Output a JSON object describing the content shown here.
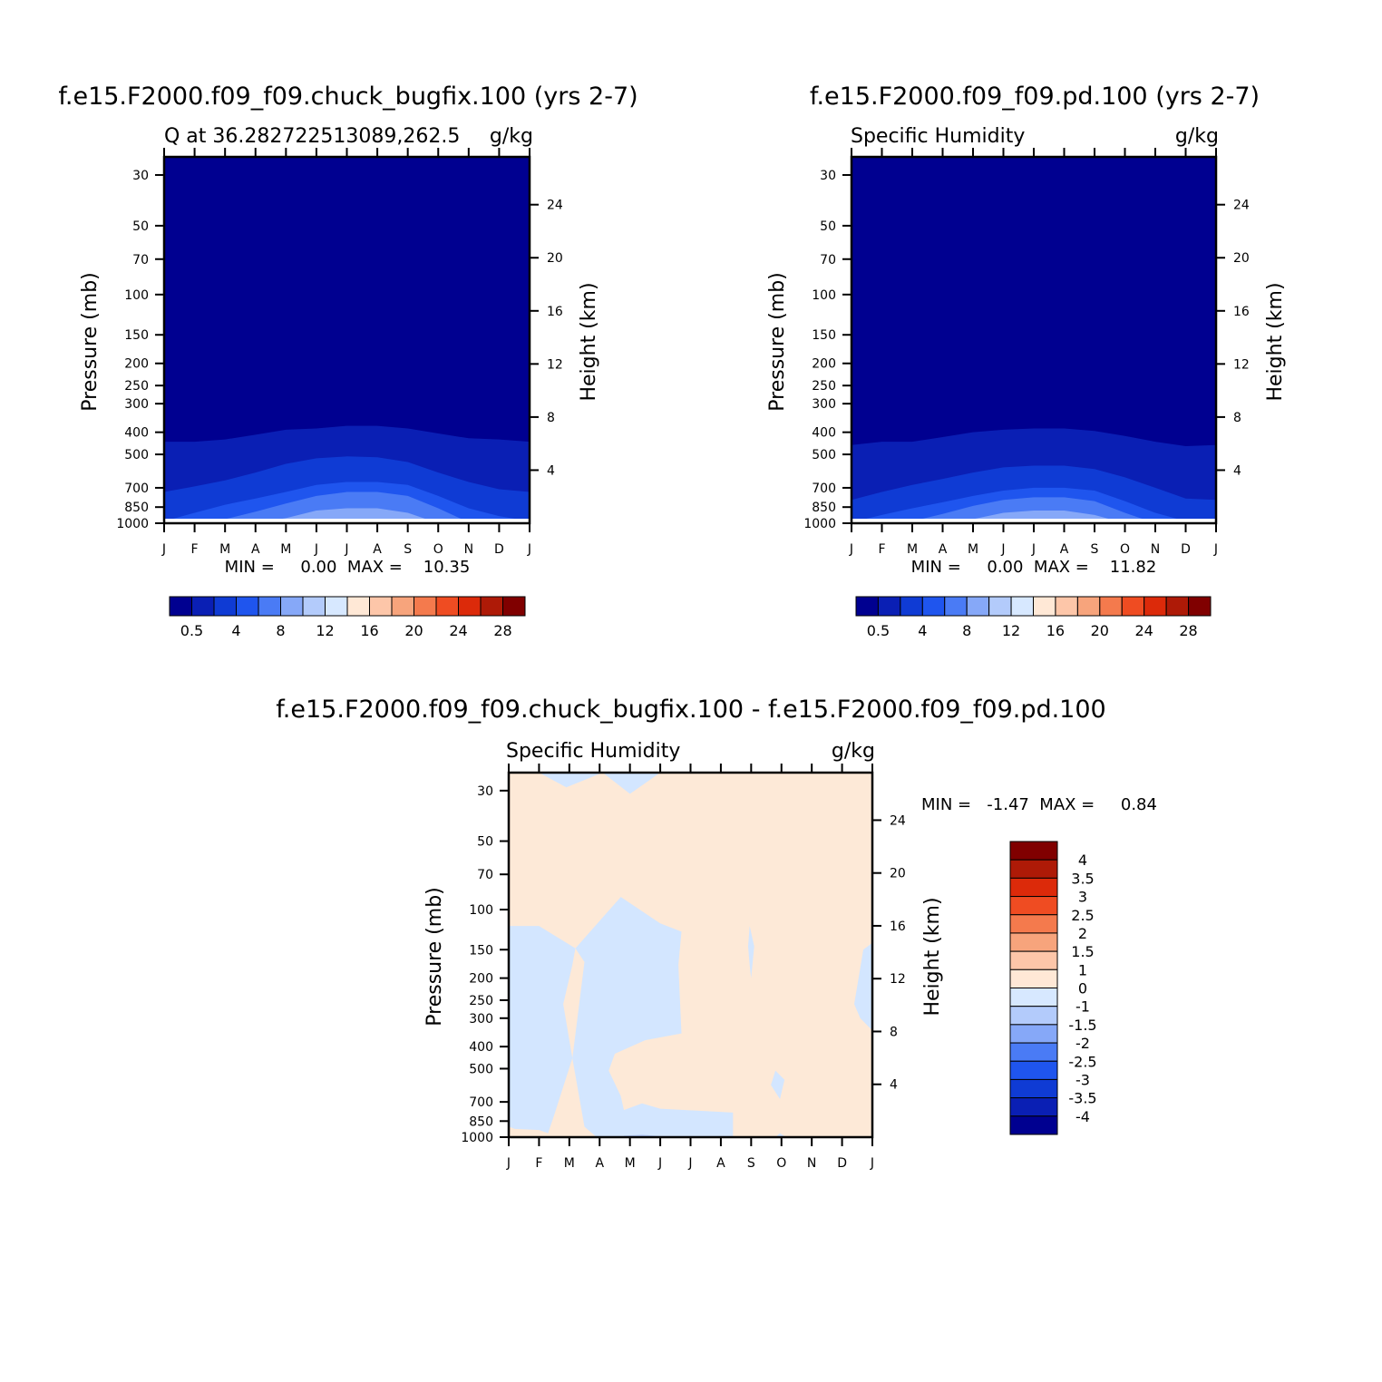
{
  "colors": {
    "levels": [
      "#000090",
      "#0a1fb4",
      "#0f3bd4",
      "#1f55ee",
      "#4a7bf5",
      "#86a8f8",
      "#b3cbfb",
      "#d7e8ff",
      "#ffe8d6",
      "#fdc6a9",
      "#f7a47c",
      "#f47a4d",
      "#ef4c22",
      "#dc2a0a",
      "#ae1a07",
      "#800000"
    ],
    "diff_pos": "#fde9d7",
    "diff_neg": "#d3e6ff",
    "diff_neg2": "#b6ccfb",
    "surface": "#ffffff"
  },
  "chart_data": [
    {
      "type": "heatmap",
      "title": "f.e15.F2000.f09_f09.chuck_bugfix.100 (yrs 2-7)",
      "subtitle_left": "Q at 36.282722513089,262.5",
      "subtitle_right": "g/kg",
      "xlabel": "",
      "ylabel": "Pressure (mb)",
      "ylabel_right": "Height (km)",
      "x_ticks": [
        "J",
        "F",
        "M",
        "A",
        "M",
        "J",
        "J",
        "A",
        "S",
        "O",
        "N",
        "D",
        "J"
      ],
      "pressure_ticks": [
        "30",
        "50",
        "70",
        "100",
        "150",
        "200",
        "250",
        "300",
        "400",
        "500",
        "700",
        "850",
        "1000"
      ],
      "height_ticks": [
        "24",
        "20",
        "16",
        "12",
        "8",
        "4"
      ],
      "ylim_mb": [
        1000,
        25
      ],
      "stats": "MIN =     0.00  MAX =    10.35",
      "min": 0.0,
      "max": 10.35,
      "colorbar_labels": [
        "0.5",
        "4",
        "8",
        "12",
        "16",
        "20",
        "24",
        "28"
      ],
      "contour_levels_gkg": [
        0.5,
        2,
        4,
        6,
        8,
        10
      ],
      "contour_boundaries_mb": [
        [
          440,
          440,
          430,
          410,
          390,
          385,
          375,
          375,
          385,
          405,
          425,
          430,
          440
        ],
        [
          730,
          690,
          650,
          600,
          550,
          520,
          510,
          515,
          540,
          600,
          660,
          710,
          730
        ],
        [
          980,
          900,
          830,
          780,
          730,
          680,
          660,
          660,
          680,
          760,
          860,
          930,
          980
        ],
        [
          1000,
          990,
          960,
          890,
          820,
          760,
          730,
          730,
          760,
          860,
          990,
          1000,
          1000
        ],
        [
          1000,
          1000,
          1000,
          1000,
          950,
          880,
          860,
          860,
          900,
          1000,
          1000,
          1000,
          1000
        ],
        [
          1000,
          1000,
          1000,
          1000,
          1000,
          990,
          960,
          960,
          1000,
          1000,
          1000,
          1000,
          1000
        ]
      ]
    },
    {
      "type": "heatmap",
      "title": "f.e15.F2000.f09_f09.pd.100 (yrs 2-7)",
      "subtitle_left": "Specific Humidity",
      "subtitle_right": "g/kg",
      "xlabel": "",
      "ylabel": "Pressure (mb)",
      "ylabel_right": "Height (km)",
      "x_ticks": [
        "J",
        "F",
        "M",
        "A",
        "M",
        "J",
        "J",
        "A",
        "S",
        "O",
        "N",
        "D",
        "J"
      ],
      "pressure_ticks": [
        "30",
        "50",
        "70",
        "100",
        "150",
        "200",
        "250",
        "300",
        "400",
        "500",
        "700",
        "850",
        "1000"
      ],
      "height_ticks": [
        "24",
        "20",
        "16",
        "12",
        "8",
        "4"
      ],
      "ylim_mb": [
        1000,
        25
      ],
      "stats": "MIN =     0.00  MAX =    11.82",
      "min": 0.0,
      "max": 11.82,
      "colorbar_labels": [
        "0.5",
        "4",
        "8",
        "12",
        "16",
        "20",
        "24",
        "28"
      ],
      "contour_levels_gkg": [
        0.5,
        2,
        4,
        6,
        8,
        10
      ],
      "contour_boundaries_mb": [
        [
          455,
          440,
          440,
          420,
          400,
          390,
          385,
          385,
          395,
          415,
          440,
          460,
          455
        ],
        [
          790,
          730,
          680,
          640,
          600,
          570,
          560,
          560,
          580,
          630,
          700,
          780,
          790
        ],
        [
          990,
          920,
          860,
          810,
          760,
          720,
          700,
          700,
          720,
          800,
          900,
          980,
          990
        ],
        [
          1000,
          1000,
          980,
          910,
          840,
          790,
          770,
          770,
          800,
          900,
          1000,
          1000,
          1000
        ],
        [
          1000,
          1000,
          1000,
          1000,
          960,
          900,
          880,
          880,
          920,
          1000,
          1000,
          1000,
          1000
        ],
        [
          1000,
          1000,
          1000,
          1000,
          1000,
          990,
          980,
          990,
          1000,
          1000,
          1000,
          1000,
          1000
        ]
      ]
    },
    {
      "type": "heatmap",
      "title": "f.e15.F2000.f09_f09.chuck_bugfix.100 - f.e15.F2000.f09_f09.pd.100",
      "subtitle_left": "Specific Humidity",
      "subtitle_right": "g/kg",
      "xlabel": "",
      "ylabel": "Pressure (mb)",
      "ylabel_right": "Height (km)",
      "x_ticks": [
        "J",
        "F",
        "M",
        "A",
        "M",
        "J",
        "J",
        "A",
        "S",
        "O",
        "N",
        "D",
        "J"
      ],
      "pressure_ticks": [
        "30",
        "50",
        "70",
        "100",
        "150",
        "200",
        "250",
        "300",
        "400",
        "500",
        "700",
        "850",
        "1000"
      ],
      "height_ticks": [
        "24",
        "20",
        "16",
        "12",
        "8",
        "4"
      ],
      "ylim_mb": [
        1000,
        25
      ],
      "stats": "MIN =   -1.47  MAX =     0.84",
      "min": -1.47,
      "max": 0.84,
      "colorbar_labels": [
        "4",
        "3.5",
        "3",
        "2.5",
        "2",
        "1.5",
        "1",
        "0",
        "-1",
        "-1.5",
        "-2",
        "-2.5",
        "-3",
        "-3.5",
        "-4"
      ],
      "background_region": "0 to 1 g/kg",
      "negative_regions": [
        {
          "level": "-1 to 0",
          "points": [
            [
              1.0,
              25
            ],
            [
              1.9,
              29
            ],
            [
              3.1,
              25
            ]
          ]
        },
        {
          "level": "-1 to 0",
          "points": [
            [
              3.1,
              25
            ],
            [
              4.0,
              31
            ],
            [
              5.0,
              25
            ]
          ]
        },
        {
          "level": "-1 to 0",
          "points": [
            [
              0,
              118
            ],
            [
              1.0,
              118
            ],
            [
              2.2,
              148
            ],
            [
              2.1,
              175
            ],
            [
              1.8,
              260
            ],
            [
              2.1,
              450
            ],
            [
              1.5,
              800
            ],
            [
              1.3,
              960
            ],
            [
              1.0,
              930
            ],
            [
              0.2,
              920
            ],
            [
              0,
              900
            ]
          ]
        },
        {
          "level": "-1 to 0",
          "points": [
            [
              2.2,
              148
            ],
            [
              3.7,
              88
            ],
            [
              5.0,
              115
            ],
            [
              5.7,
              125
            ],
            [
              5.6,
              175
            ],
            [
              5.7,
              350
            ],
            [
              4.5,
              375
            ],
            [
              3.5,
              430
            ],
            [
              3.3,
              510
            ],
            [
              3.7,
              660
            ],
            [
              3.8,
              760
            ],
            [
              4.4,
              710
            ],
            [
              5.0,
              750
            ],
            [
              7.4,
              780
            ],
            [
              7.4,
              1000
            ],
            [
              2.9,
              1000
            ],
            [
              2.5,
              900
            ],
            [
              2.1,
              450
            ],
            [
              2.5,
              170
            ]
          ]
        },
        {
          "level": "-1 to 0",
          "points": [
            [
              7.95,
              118
            ],
            [
              8.1,
              145
            ],
            [
              8.0,
              200
            ],
            [
              7.95,
              175
            ],
            [
              7.9,
              145
            ]
          ]
        },
        {
          "level": "-1 to 0",
          "points": [
            [
              8.8,
              510
            ],
            [
              9.1,
              560
            ],
            [
              8.95,
              680
            ],
            [
              8.65,
              590
            ]
          ]
        },
        {
          "level": "-1 to 0",
          "points": [
            [
              8.8,
              1000
            ],
            [
              8.95,
              960
            ],
            [
              9.15,
              1000
            ]
          ]
        },
        {
          "level": "-1 to 0",
          "points": [
            [
              12,
              140
            ],
            [
              11.7,
              150
            ],
            [
              11.4,
              260
            ],
            [
              11.6,
              300
            ],
            [
              12,
              340
            ]
          ]
        },
        {
          "level": "-1 to 0",
          "points": [
            [
              0,
              420
            ],
            [
              0.1,
              520
            ],
            [
              0,
              600
            ]
          ]
        },
        {
          "level": "-1.5 to -1",
          "points": [
            [
              3.8,
              985
            ],
            [
              4.4,
              975
            ],
            [
              5.0,
              990
            ],
            [
              5.4,
              1000
            ],
            [
              3.8,
              1000
            ]
          ]
        }
      ]
    }
  ]
}
